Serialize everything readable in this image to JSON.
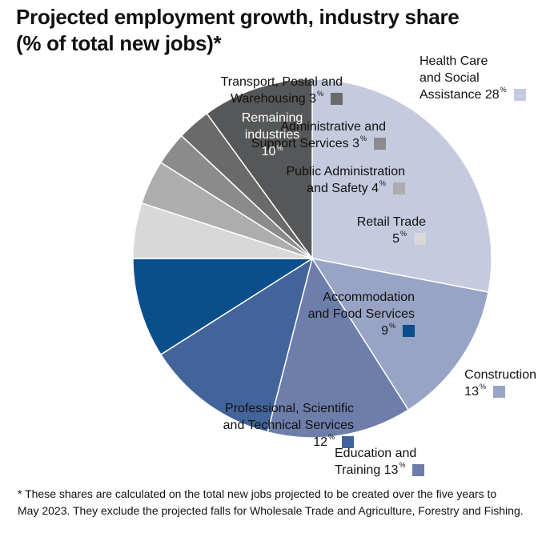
{
  "title": {
    "line1": "Projected employment growth, industry share",
    "line2": "(% of total new jobs)*"
  },
  "percent_suffix": "%",
  "chart_data": {
    "type": "pie",
    "title": "Projected employment growth, industry share (% of total new jobs)*",
    "slices": [
      {
        "id": "health",
        "lines": [
          "Health Care",
          "and Social",
          "Assistance 28"
        ],
        "value": 28,
        "color": "#c5cadf"
      },
      {
        "id": "construction",
        "lines": [
          "Construction",
          "13"
        ],
        "value": 13,
        "color": "#98a4c5"
      },
      {
        "id": "education",
        "lines": [
          "Education and",
          "Training 13"
        ],
        "value": 13,
        "color": "#6e7eab"
      },
      {
        "id": "professional",
        "lines": [
          "Professional, Scientific",
          "and Technical Services",
          "12"
        ],
        "value": 12,
        "color": "#43649b"
      },
      {
        "id": "accommodation",
        "lines": [
          "Accommodation",
          "and Food Services",
          "9"
        ],
        "value": 9,
        "color": "#0b4e8c"
      },
      {
        "id": "retail",
        "lines": [
          "Retail Trade",
          "5"
        ],
        "value": 5,
        "color": "#d8d8d8"
      },
      {
        "id": "public-admin",
        "lines": [
          "Public Administration",
          "and Safety 4"
        ],
        "value": 4,
        "color": "#adadad"
      },
      {
        "id": "admin-support",
        "lines": [
          "Administrative and",
          "Support Services 3"
        ],
        "value": 3,
        "color": "#8b8b8b"
      },
      {
        "id": "transport",
        "lines": [
          "Transport, Postal and",
          "Warehousing 3"
        ],
        "value": 3,
        "color": "#6a6a6a"
      },
      {
        "id": "remaining",
        "lines": [
          "Remaining",
          "industries",
          "10"
        ],
        "value": 10,
        "color": "#555759"
      }
    ]
  },
  "footnote": {
    "line1": "* These shares are calculated on the total new jobs projected to be created over the five years to",
    "line2": "May 2023. They exclude the projected falls for Wholesale Trade and Agriculture, Forestry and Fishing."
  }
}
